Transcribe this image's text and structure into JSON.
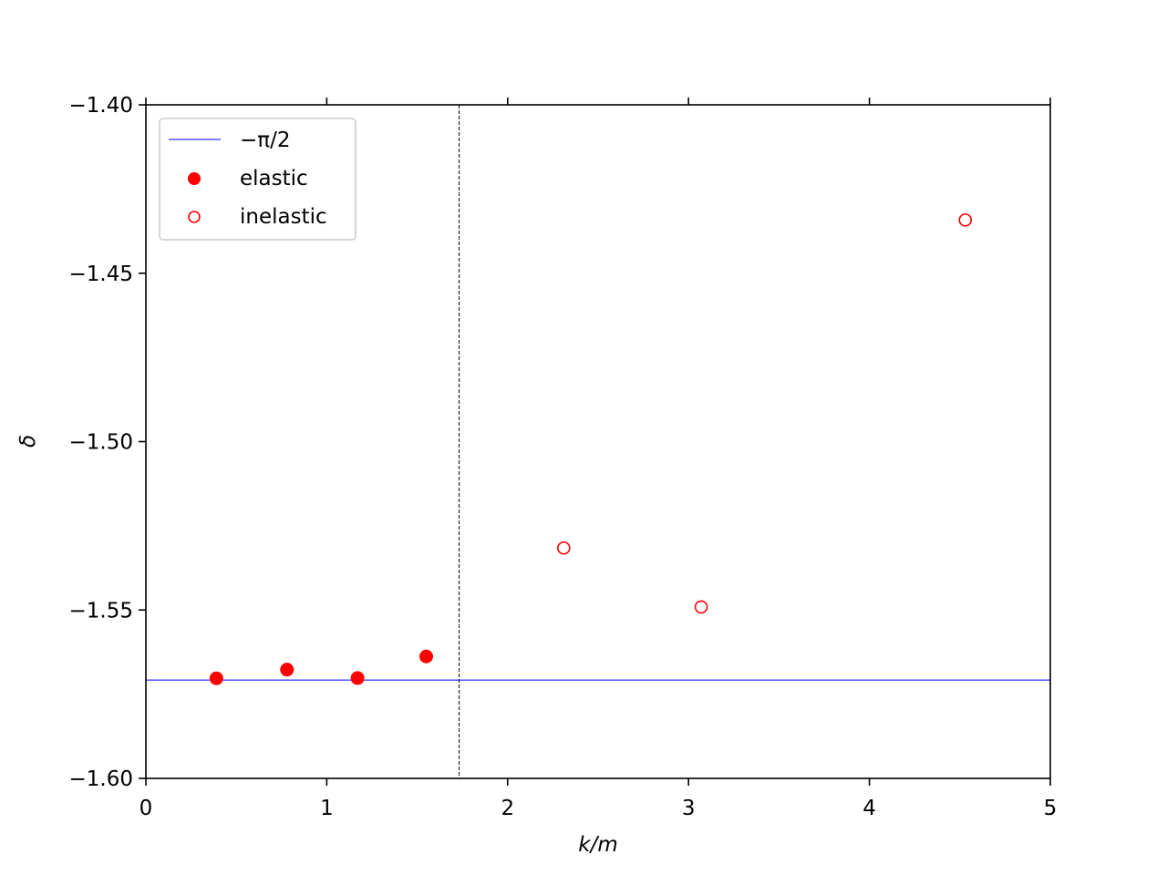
{
  "chart_data": {
    "type": "scatter",
    "xlabel": "k/m",
    "ylabel": "δ",
    "xlim": [
      0,
      5
    ],
    "ylim": [
      -1.6,
      -1.4
    ],
    "xticks": [
      "0",
      "1",
      "2",
      "3",
      "4",
      "5"
    ],
    "yticks": [
      "−1.60",
      "−1.55",
      "−1.50",
      "−1.45",
      "−1.40"
    ],
    "grid": false,
    "legend_position": "top-left",
    "reference_line": {
      "name": "−π/2",
      "y": -1.5708,
      "color": "#0000ff"
    },
    "vertical_line": {
      "x": 1.732,
      "style": "dashed",
      "color": "#000000"
    },
    "series": [
      {
        "name": "elastic",
        "marker": "filled-circle",
        "color": "#ff0000",
        "x": [
          0.39,
          0.78,
          1.17,
          1.55
        ],
        "y": [
          -1.5703,
          -1.5677,
          -1.5702,
          -1.5638
        ]
      },
      {
        "name": "inelastic",
        "marker": "open-circle",
        "color": "#ff0000",
        "x": [
          2.31,
          3.07,
          4.53
        ],
        "y": [
          -1.5316,
          -1.5491,
          -1.4342
        ]
      }
    ]
  }
}
